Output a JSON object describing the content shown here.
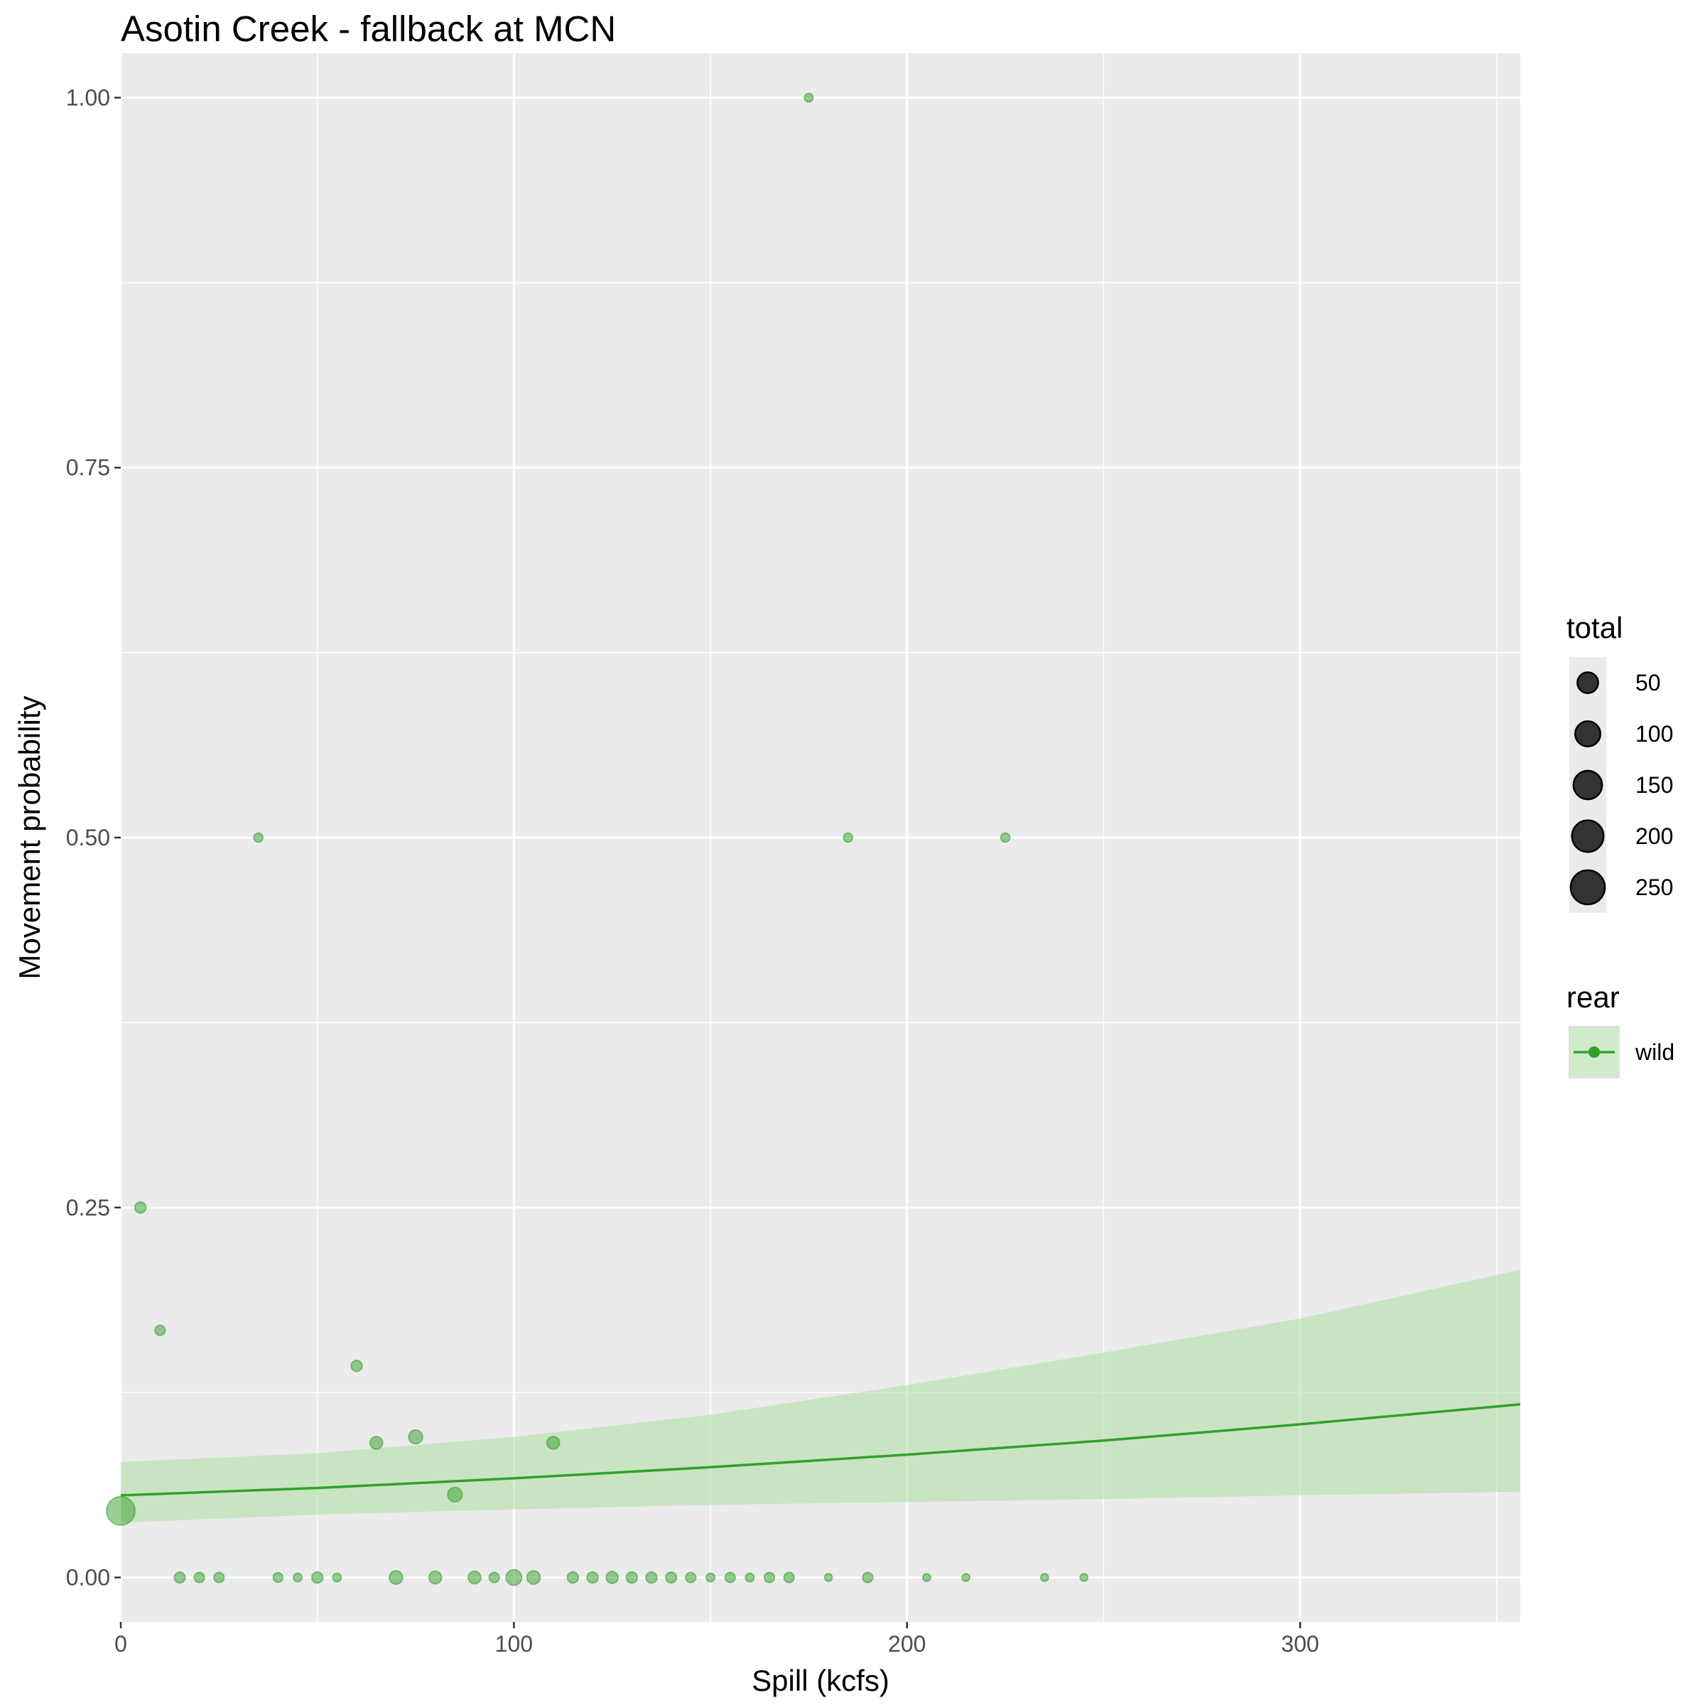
{
  "chart_data": {
    "type": "scatter",
    "title": "Asotin Creek - fallback at MCN",
    "xlabel": "Spill (kcfs)",
    "ylabel": "Movement probability",
    "xlim": [
      0,
      356
    ],
    "ylim": [
      -0.03,
      1.03
    ],
    "x_ticks": [
      0,
      100,
      200,
      300
    ],
    "x_tick_labels": [
      "0",
      "100",
      "200",
      "300"
    ],
    "y_ticks": [
      0,
      0.25,
      0.5,
      0.75,
      1.0
    ],
    "y_tick_labels": [
      "0.00",
      "0.25",
      "0.50",
      "0.75",
      "1.00"
    ],
    "grid": true,
    "colors": {
      "panel_background": "#ebebeb",
      "grid": "#ffffff",
      "series": "#33a02c",
      "ribbon": "#b2dfa8",
      "size_legend_point": "#333333"
    },
    "points": {
      "x": [
        0,
        5,
        10,
        15,
        20,
        25,
        35,
        40,
        45,
        50,
        55,
        60,
        65,
        70,
        75,
        80,
        85,
        90,
        95,
        100,
        105,
        110,
        115,
        120,
        125,
        130,
        135,
        140,
        145,
        150,
        155,
        160,
        165,
        170,
        175,
        180,
        185,
        190,
        205,
        215,
        225,
        235,
        245
      ],
      "y": [
        0.045,
        0.25,
        0.167,
        0,
        0,
        0,
        0.5,
        0,
        0,
        0,
        0,
        0.143,
        0.091,
        0,
        0.095,
        0,
        0.056,
        0,
        0,
        0,
        0,
        0.091,
        0,
        0,
        0,
        0,
        0,
        0,
        0,
        0,
        0,
        0,
        0,
        0,
        1.0,
        0,
        0.5,
        0,
        0,
        0,
        0.5,
        0,
        0
      ],
      "total": [
        250,
        20,
        15,
        18,
        15,
        15,
        10,
        12,
        8,
        20,
        8,
        20,
        30,
        35,
        40,
        30,
        45,
        30,
        15,
        55,
        35,
        30,
        20,
        20,
        25,
        20,
        20,
        18,
        15,
        8,
        15,
        8,
        15,
        15,
        8,
        5,
        10,
        15,
        5,
        5,
        10,
        5,
        5
      ]
    },
    "fit": {
      "x": [
        0,
        50,
        100,
        150,
        200,
        250,
        300,
        356
      ],
      "y": [
        0.0555,
        0.0605,
        0.067,
        0.0745,
        0.083,
        0.0925,
        0.1035,
        0.117
      ],
      "lower": [
        0.037,
        0.0425,
        0.046,
        0.049,
        0.051,
        0.053,
        0.0555,
        0.058
      ],
      "upper": [
        0.078,
        0.084,
        0.095,
        0.11,
        0.13,
        0.152,
        0.175,
        0.208
      ]
    },
    "legend_size": {
      "title": "total",
      "values": [
        50,
        100,
        150,
        200,
        250
      ],
      "labels": [
        "50",
        "100",
        "150",
        "200",
        "250"
      ]
    },
    "legend_color": {
      "title": "rear",
      "entries": [
        "wild"
      ]
    }
  }
}
